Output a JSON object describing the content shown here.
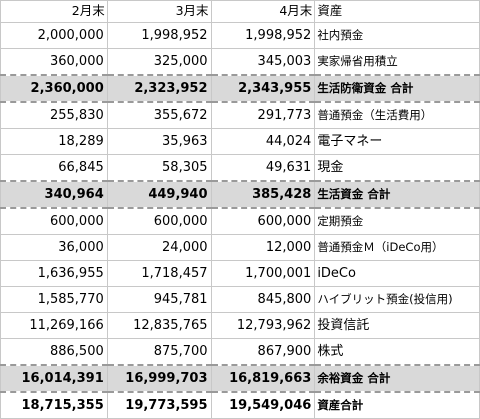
{
  "header": {
    "col_feb": "2月末",
    "col_mar": "3月末",
    "col_apr": "4月末",
    "col_item": "資産"
  },
  "rows": [
    {
      "feb": "2,000,000",
      "mar": "1,998,952",
      "apr": "1,998,952",
      "item": "社内預金"
    },
    {
      "feb": "360,000",
      "mar": "325,000",
      "apr": "345,003",
      "item": "実家帰省用積立"
    },
    {
      "feb": "2,360,000",
      "mar": "2,323,952",
      "apr": "2,343,955",
      "item": "生活防衛資金 合計"
    },
    {
      "feb": "255,830",
      "mar": "355,672",
      "apr": "291,773",
      "item": "普通預金（生活費用）"
    },
    {
      "feb": "18,289",
      "mar": "35,963",
      "apr": "44,024",
      "item": "電子マネー"
    },
    {
      "feb": "66,845",
      "mar": "58,305",
      "apr": "49,631",
      "item": "現金"
    },
    {
      "feb": "340,964",
      "mar": "449,940",
      "apr": "385,428",
      "item": "生活資金 合計"
    },
    {
      "feb": "600,000",
      "mar": "600,000",
      "apr": "600,000",
      "item": "定期預金"
    },
    {
      "feb": "36,000",
      "mar": "24,000",
      "apr": "12,000",
      "item": "普通預金Ｍ（iDeCo用）"
    },
    {
      "feb": "1,636,955",
      "mar": "1,718,457",
      "apr": "1,700,001",
      "item": "iDeCo"
    },
    {
      "feb": "1,585,770",
      "mar": "945,781",
      "apr": "845,800",
      "item": "ハイブリット預金(投信用)"
    },
    {
      "feb": "11,269,166",
      "mar": "12,835,765",
      "apr": "12,793,962",
      "item": "投資信託"
    },
    {
      "feb": "886,500",
      "mar": "875,700",
      "apr": "867,900",
      "item": "株式"
    },
    {
      "feb": "16,014,391",
      "mar": "16,999,703",
      "apr": "16,819,663",
      "item": "余裕資金 合計"
    },
    {
      "feb": "18,715,355",
      "mar": "19,773,595",
      "apr": "19,549,046",
      "item": "資産合計"
    }
  ]
}
